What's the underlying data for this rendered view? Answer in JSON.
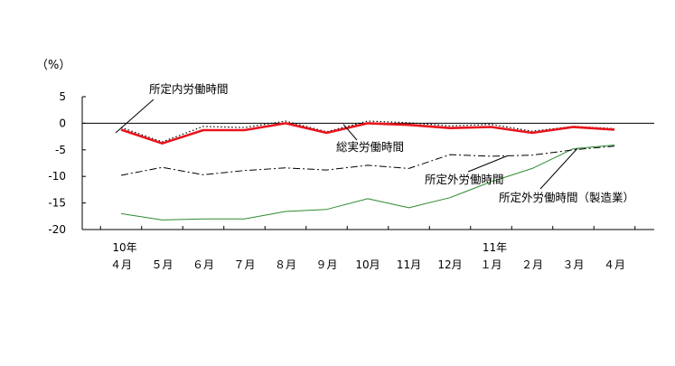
{
  "chart_data": {
    "type": "line",
    "ylabel": "（%）",
    "ylim": [
      -20,
      5
    ],
    "yticks": [
      5,
      0,
      -5,
      -10,
      -15,
      -20
    ],
    "grid": false,
    "legend": "inline annotations",
    "x_year_labels": [
      {
        "index": 0,
        "label": "10年"
      },
      {
        "index": 9,
        "label": "11年"
      }
    ],
    "categories": [
      "４月",
      "５月",
      "６月",
      "７月",
      "８月",
      "９月",
      "10月",
      "11月",
      "12月",
      "１月",
      "２月",
      "３月",
      "４月"
    ],
    "series": [
      {
        "name": "所定内労働時間",
        "style": "dotted",
        "color": "#000000",
        "values": [
          -0.8,
          -3.5,
          -0.6,
          -0.8,
          0.4,
          -1.6,
          0.4,
          0.1,
          -0.5,
          -0.2,
          -1.5,
          -0.6,
          -1.0
        ]
      },
      {
        "name": "総実労働時間",
        "style": "solid-thick",
        "color": "#e8141c",
        "values": [
          -1.2,
          -3.8,
          -1.3,
          -1.3,
          0.0,
          -1.8,
          0.0,
          -0.3,
          -0.9,
          -0.7,
          -1.8,
          -0.7,
          -1.2
        ]
      },
      {
        "name": "所定外労働時間",
        "style": "dash-dot",
        "color": "#000000",
        "values": [
          -9.8,
          -8.3,
          -9.7,
          -8.9,
          -8.4,
          -8.8,
          -7.9,
          -8.5,
          -5.9,
          -6.2,
          -6.0,
          -5.0,
          -4.3
        ]
      },
      {
        "name": "所定外労働時間（製造業）",
        "style": "solid-thin",
        "color": "#2e8b2e",
        "values": [
          -17.0,
          -18.2,
          -18.0,
          -18.0,
          -16.6,
          -16.2,
          -14.2,
          -15.9,
          -14.0,
          -11.0,
          -8.5,
          -4.8,
          -4.1
        ]
      }
    ]
  }
}
